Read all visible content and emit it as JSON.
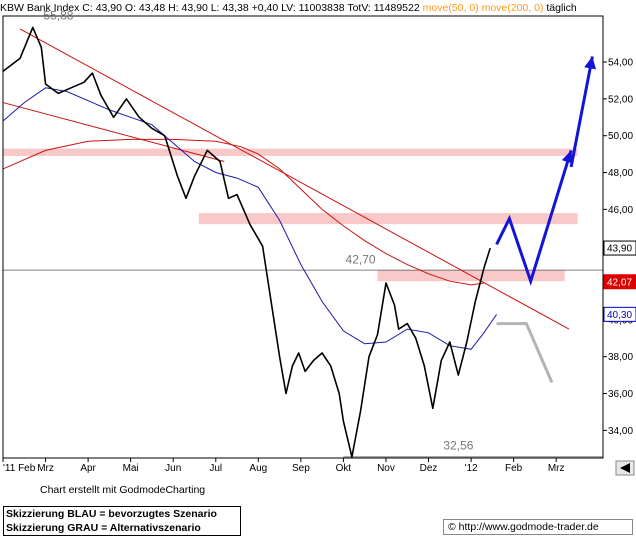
{
  "header": {
    "symbol": "KBW Bank Index",
    "close": "C: 43,90",
    "open": "O: 43,48",
    "high": "H: 43,90",
    "low": "L: 43,38",
    "change": "+0,40",
    "volume": "LV: 11003838",
    "total_volume": "TotV: 11489522",
    "ma50": "move(50, 0)",
    "ma200": "move(200, 0)",
    "interval": "täglich"
  },
  "footer": {
    "credit": "Chart erstellt mit GodmodeCharting",
    "legend_blue": "Skizzierung BLAU = bevorzugtes Szenario",
    "legend_grey": "Skizzierung GRAU = Alternativszenario",
    "copyright": "© http://www.godmode-trader.de"
  },
  "colors": {
    "price": "#000000",
    "ma50": "#1a1aa8",
    "ma200": "#cc1111",
    "trendline": "#cc1111",
    "zone": "#f9c8c8",
    "blue_scenario": "#1414d8",
    "grey_scenario": "#b4b4b4",
    "badge_current": "#000000",
    "badge_red": "#dd0000",
    "badge_blue": "#0000cc"
  },
  "chart_data": {
    "type": "line",
    "y_axis": {
      "range": [
        32.5,
        56.5
      ],
      "ticks": [
        34,
        36,
        38,
        40,
        42,
        44,
        46,
        48,
        50,
        52,
        54
      ],
      "tick_labels": [
        "34,00",
        "36,00",
        "38,00",
        "40,00",
        "42,00",
        "44,00",
        "46,00",
        "48,00",
        "50,00",
        "52,00",
        "54,00"
      ],
      "side": "right"
    },
    "x_axis": {
      "range": [
        0,
        14.1
      ],
      "ticks": [
        0,
        1,
        2,
        3,
        4,
        5,
        6,
        7,
        8,
        9,
        10,
        11,
        12,
        13
      ],
      "tick_labels": [
        "'11 Feb",
        "Mrz",
        "Apr",
        "Mai",
        "Jun",
        "Jul",
        "Aug",
        "Sep",
        "Okt",
        "Nov",
        "Dez",
        "'12",
        "Feb",
        "Mrz"
      ]
    },
    "grid": false,
    "price_series": {
      "name": "KBW Bank Index",
      "x": [
        0,
        0.4,
        0.7,
        0.9,
        1.0,
        1.3,
        1.6,
        1.9,
        2.1,
        2.3,
        2.6,
        2.9,
        3.2,
        3.5,
        3.8,
        4.1,
        4.3,
        4.5,
        4.8,
        5.1,
        5.3,
        5.5,
        5.8,
        6.1,
        6.3,
        6.5,
        6.65,
        6.8,
        6.95,
        7.1,
        7.3,
        7.5,
        7.7,
        7.9,
        8.0,
        8.2,
        8.4,
        8.6,
        8.8,
        9.0,
        9.2,
        9.3,
        9.5,
        9.7,
        9.9,
        10.1,
        10.3,
        10.5,
        10.7,
        10.9,
        11.1,
        11.3,
        11.45
      ],
      "values": [
        53.5,
        54.2,
        55.88,
        54.8,
        52.8,
        52.3,
        52.6,
        52.9,
        53.4,
        52.2,
        51.0,
        52.0,
        51.0,
        50.4,
        50.0,
        47.8,
        46.6,
        47.8,
        49.2,
        48.6,
        46.6,
        46.8,
        45.2,
        44.0,
        41.0,
        38.0,
        36.0,
        37.5,
        38.2,
        37.2,
        37.8,
        38.2,
        37.5,
        36.0,
        34.5,
        32.56,
        35.0,
        38.0,
        39.2,
        42.0,
        40.8,
        39.5,
        39.8,
        39.0,
        37.5,
        35.2,
        37.8,
        38.8,
        37.0,
        38.8,
        41.0,
        42.8,
        43.9
      ]
    },
    "ma50_series": {
      "name": "move(50, 0)",
      "x": [
        0,
        0.5,
        1.0,
        1.5,
        2.0,
        2.5,
        3.0,
        3.5,
        4.0,
        4.5,
        5.0,
        5.5,
        6.0,
        6.5,
        7.0,
        7.5,
        8.0,
        8.5,
        9.0,
        9.5,
        10.0,
        10.5,
        11.0,
        11.3,
        11.6
      ],
      "values": [
        50.8,
        51.8,
        52.6,
        52.4,
        51.9,
        51.4,
        51.0,
        50.6,
        49.6,
        48.6,
        48.0,
        47.7,
        47.2,
        45.4,
        43.0,
        41.0,
        39.4,
        38.7,
        38.8,
        39.5,
        39.3,
        38.6,
        38.4,
        39.3,
        40.3
      ]
    },
    "ma200_series": {
      "name": "move(200, 0)",
      "x": [
        0,
        1.0,
        2.0,
        3.0,
        4.0,
        5.0,
        5.6,
        6.0,
        6.5,
        7.0,
        7.5,
        8.0,
        8.5,
        9.0,
        9.5,
        10.0,
        10.5,
        11.0,
        11.3
      ],
      "values": [
        48.2,
        49.2,
        49.7,
        49.8,
        49.8,
        49.7,
        49.4,
        49.0,
        48.2,
        47.1,
        46.0,
        45.1,
        44.3,
        43.6,
        43.0,
        42.5,
        42.1,
        41.9,
        42.0
      ]
    },
    "trendlines": [
      {
        "x": [
          0.4,
          13.3
        ],
        "values": [
          55.8,
          39.5
        ]
      },
      {
        "x": [
          0,
          5.2
        ],
        "values": [
          51.8,
          48.6
        ]
      }
    ],
    "horizontal_lines": [
      {
        "value": 42.7,
        "label": "42,70"
      },
      {
        "value": 32.56,
        "label": "32,56"
      }
    ],
    "annotations": [
      {
        "text": "55,88",
        "value": 55.88
      },
      {
        "text": "42,70",
        "value": 42.7
      },
      {
        "text": "32,56",
        "value": 32.56
      }
    ],
    "resistance_zones": [
      {
        "x": [
          0,
          13.5
        ],
        "range": [
          48.9,
          49.3
        ]
      },
      {
        "x": [
          4.6,
          13.5
        ],
        "range": [
          45.2,
          45.8
        ]
      },
      {
        "x": [
          8.8,
          13.2
        ],
        "range": [
          42.1,
          42.7
        ]
      }
    ],
    "scenario_blue": {
      "x": [
        11.6,
        11.9,
        12.4,
        13.35
      ],
      "values": [
        44.1,
        45.5,
        42.1,
        49.2
      ]
    },
    "scenario_blue_upper": {
      "x": [
        13.35,
        13.85
      ],
      "values": [
        48.3,
        54.3
      ]
    },
    "scenario_grey": {
      "x": [
        11.6,
        12.3,
        12.9
      ],
      "values": [
        39.8,
        39.8,
        36.6
      ]
    },
    "badges": [
      {
        "text": "43,90",
        "value": 43.9,
        "style": "current"
      },
      {
        "text": "42,07",
        "value": 42.07,
        "style": "red"
      },
      {
        "text": "40,30",
        "value": 40.3,
        "style": "blue"
      }
    ]
  }
}
